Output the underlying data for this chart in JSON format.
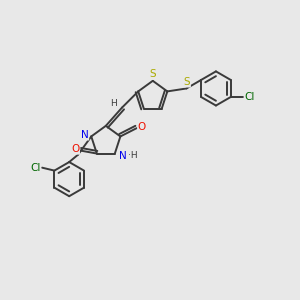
{
  "bg_color": "#e8e8e8",
  "bond_color": "#3a3a3a",
  "atom_colors": {
    "O": "#ee1100",
    "N": "#0000ee",
    "S": "#aaaa00",
    "Cl": "#006600",
    "H": "#3a3a3a",
    "C": "#3a3a3a"
  }
}
